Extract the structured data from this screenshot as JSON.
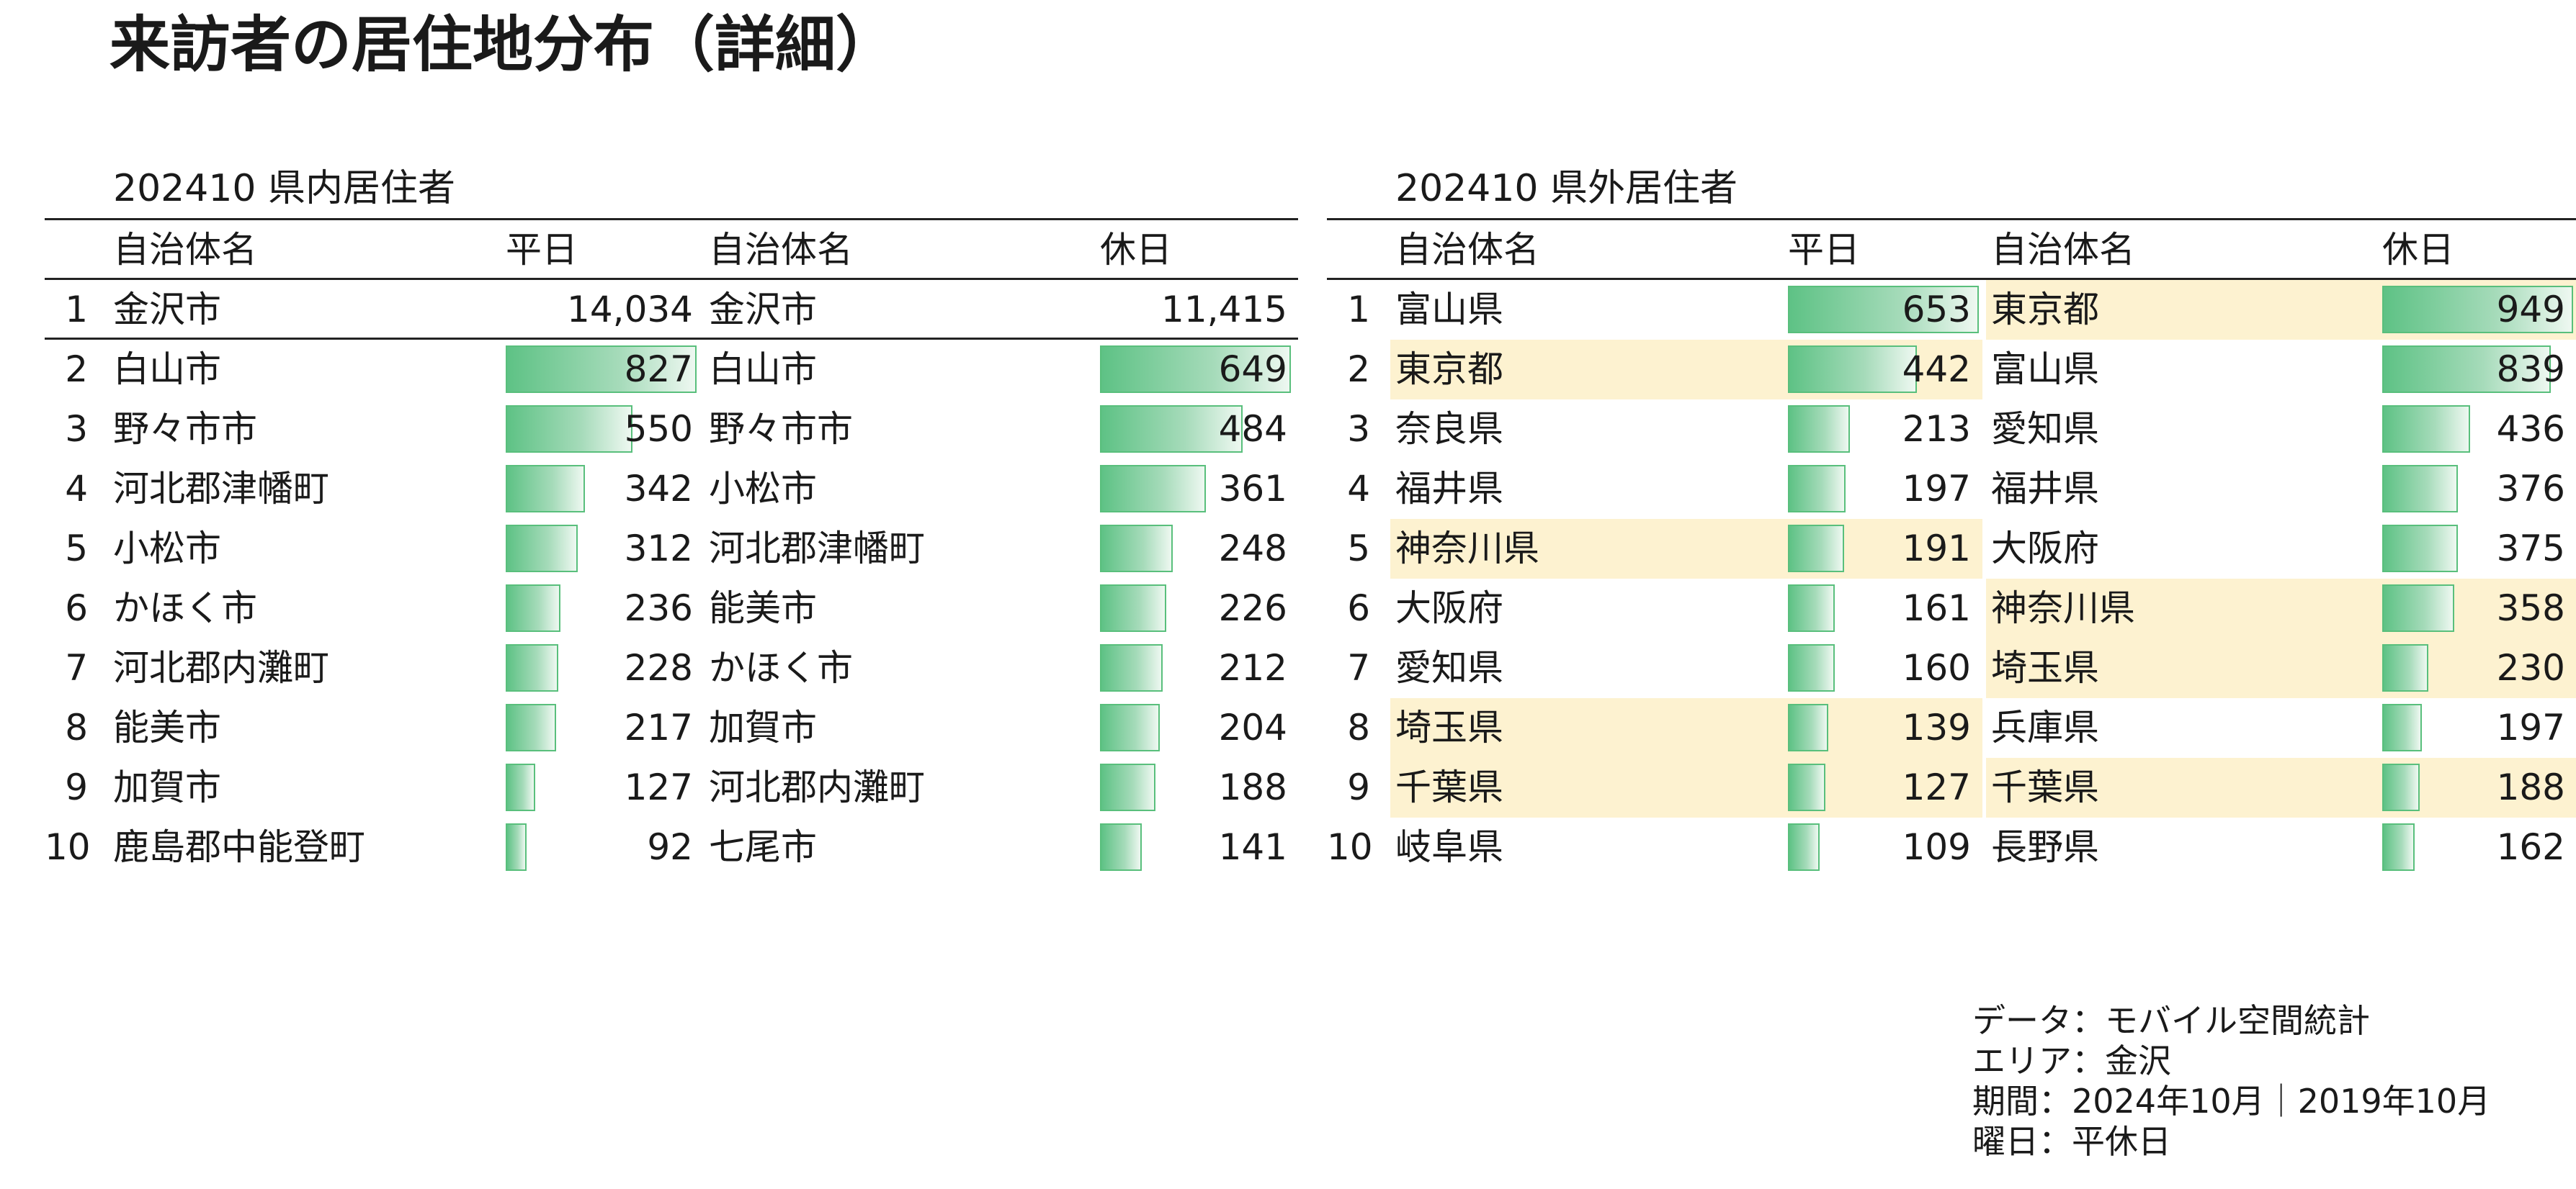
{
  "title": "来訪者の居住地分布（詳細）",
  "colors": {
    "bar": "#5ec285",
    "highlight": "#fdf2d0",
    "rule": "#222222"
  },
  "panels": [
    {
      "id": "in-pref",
      "title": "202410 県内居住者",
      "headers": {
        "name": "自治体名",
        "weekday": "平日",
        "holiday": "休日"
      },
      "rows": [
        {
          "rank": "1",
          "weekday": {
            "name": "金沢市",
            "value": 14034,
            "label": "14,034",
            "bar": false,
            "highlight": false
          },
          "holiday": {
            "name": "金沢市",
            "value": 11415,
            "label": "11,415",
            "bar": false,
            "highlight": false
          }
        },
        {
          "rank": "2",
          "weekday": {
            "name": "白山市",
            "value": 827,
            "label": "827",
            "bar": true,
            "highlight": false
          },
          "holiday": {
            "name": "白山市",
            "value": 649,
            "label": "649",
            "bar": true,
            "highlight": false
          }
        },
        {
          "rank": "3",
          "weekday": {
            "name": "野々市市",
            "value": 550,
            "label": "550",
            "bar": true,
            "highlight": false
          },
          "holiday": {
            "name": "野々市市",
            "value": 484,
            "label": "484",
            "bar": true,
            "highlight": false
          }
        },
        {
          "rank": "4",
          "weekday": {
            "name": "河北郡津幡町",
            "value": 342,
            "label": "342",
            "bar": true,
            "highlight": false
          },
          "holiday": {
            "name": "小松市",
            "value": 361,
            "label": "361",
            "bar": true,
            "highlight": false
          }
        },
        {
          "rank": "5",
          "weekday": {
            "name": "小松市",
            "value": 312,
            "label": "312",
            "bar": true,
            "highlight": false
          },
          "holiday": {
            "name": "河北郡津幡町",
            "value": 248,
            "label": "248",
            "bar": true,
            "highlight": false
          }
        },
        {
          "rank": "6",
          "weekday": {
            "name": "かほく市",
            "value": 236,
            "label": "236",
            "bar": true,
            "highlight": false
          },
          "holiday": {
            "name": "能美市",
            "value": 226,
            "label": "226",
            "bar": true,
            "highlight": false
          }
        },
        {
          "rank": "7",
          "weekday": {
            "name": "河北郡内灘町",
            "value": 228,
            "label": "228",
            "bar": true,
            "highlight": false
          },
          "holiday": {
            "name": "かほく市",
            "value": 212,
            "label": "212",
            "bar": true,
            "highlight": false
          }
        },
        {
          "rank": "8",
          "weekday": {
            "name": "能美市",
            "value": 217,
            "label": "217",
            "bar": true,
            "highlight": false
          },
          "holiday": {
            "name": "加賀市",
            "value": 204,
            "label": "204",
            "bar": true,
            "highlight": false
          }
        },
        {
          "rank": "9",
          "weekday": {
            "name": "加賀市",
            "value": 127,
            "label": "127",
            "bar": true,
            "highlight": false
          },
          "holiday": {
            "name": "河北郡内灘町",
            "value": 188,
            "label": "188",
            "bar": true,
            "highlight": false
          }
        },
        {
          "rank": "10",
          "weekday": {
            "name": "鹿島郡中能登町",
            "value": 92,
            "label": "92",
            "bar": true,
            "highlight": false
          },
          "holiday": {
            "name": "七尾市",
            "value": 141,
            "label": "141",
            "bar": true,
            "highlight": false
          }
        }
      ]
    },
    {
      "id": "out-pref",
      "title": "202410 県外居住者",
      "headers": {
        "name": "自治体名",
        "weekday": "平日",
        "holiday": "休日"
      },
      "rows": [
        {
          "rank": "1",
          "weekday": {
            "name": "富山県",
            "value": 653,
            "label": "653",
            "bar": true,
            "highlight": false
          },
          "holiday": {
            "name": "東京都",
            "value": 949,
            "label": "949",
            "bar": true,
            "highlight": true
          }
        },
        {
          "rank": "2",
          "weekday": {
            "name": "東京都",
            "value": 442,
            "label": "442",
            "bar": true,
            "highlight": true
          },
          "holiday": {
            "name": "富山県",
            "value": 839,
            "label": "839",
            "bar": true,
            "highlight": false
          }
        },
        {
          "rank": "3",
          "weekday": {
            "name": "奈良県",
            "value": 213,
            "label": "213",
            "bar": true,
            "highlight": false
          },
          "holiday": {
            "name": "愛知県",
            "value": 436,
            "label": "436",
            "bar": true,
            "highlight": false
          }
        },
        {
          "rank": "4",
          "weekday": {
            "name": "福井県",
            "value": 197,
            "label": "197",
            "bar": true,
            "highlight": false
          },
          "holiday": {
            "name": "福井県",
            "value": 376,
            "label": "376",
            "bar": true,
            "highlight": false
          }
        },
        {
          "rank": "5",
          "weekday": {
            "name": "神奈川県",
            "value": 191,
            "label": "191",
            "bar": true,
            "highlight": true
          },
          "holiday": {
            "name": "大阪府",
            "value": 375,
            "label": "375",
            "bar": true,
            "highlight": false
          }
        },
        {
          "rank": "6",
          "weekday": {
            "name": "大阪府",
            "value": 161,
            "label": "161",
            "bar": true,
            "highlight": false
          },
          "holiday": {
            "name": "神奈川県",
            "value": 358,
            "label": "358",
            "bar": true,
            "highlight": true
          }
        },
        {
          "rank": "7",
          "weekday": {
            "name": "愛知県",
            "value": 160,
            "label": "160",
            "bar": true,
            "highlight": false
          },
          "holiday": {
            "name": "埼玉県",
            "value": 230,
            "label": "230",
            "bar": true,
            "highlight": true
          }
        },
        {
          "rank": "8",
          "weekday": {
            "name": "埼玉県",
            "value": 139,
            "label": "139",
            "bar": true,
            "highlight": true
          },
          "holiday": {
            "name": "兵庫県",
            "value": 197,
            "label": "197",
            "bar": true,
            "highlight": false
          }
        },
        {
          "rank": "9",
          "weekday": {
            "name": "千葉県",
            "value": 127,
            "label": "127",
            "bar": true,
            "highlight": true
          },
          "holiday": {
            "name": "千葉県",
            "value": 188,
            "label": "188",
            "bar": true,
            "highlight": true
          }
        },
        {
          "rank": "10",
          "weekday": {
            "name": "岐阜県",
            "value": 109,
            "label": "109",
            "bar": true,
            "highlight": false
          },
          "holiday": {
            "name": "長野県",
            "value": 162,
            "label": "162",
            "bar": true,
            "highlight": false
          }
        }
      ]
    }
  ],
  "footer": [
    "データ：モバイル空間統計",
    "エリア：金沢",
    "期間：2024年10月｜2019年10月",
    "曜日：平休日"
  ]
}
